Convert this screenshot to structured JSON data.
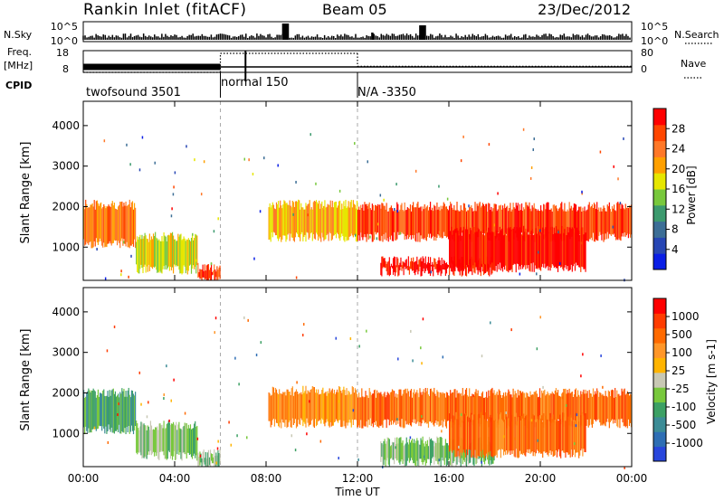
{
  "header": {
    "title": "Rankin Inlet (fitACF)",
    "beam": "Beam 05",
    "date": "23/Dec/2012"
  },
  "colors": {
    "power": [
      "#0a1ee6",
      "#2746b4",
      "#3c6e96",
      "#3c9a6e",
      "#78c83c",
      "#e6e600",
      "#ffa000",
      "#ff7828",
      "#ff4600",
      "#ff0000"
    ],
    "velocity": [
      "#2846dc",
      "#2e6eb4",
      "#3c8c96",
      "#3ca064",
      "#78c83c",
      "#c8c8b4",
      "#ffb400",
      "#ff9628",
      "#ff6a00",
      "#ff3c00",
      "#ff0000"
    ]
  },
  "chart_data": [
    {
      "type": "line",
      "panel": "status",
      "left_labels": {
        "nsky": "N.Sky",
        "freq_line1": "Freq.",
        "freq_line2": "[MHz]",
        "cpid": "CPID"
      },
      "right_labels": {
        "nsearch": "N.Search",
        "nave": "Nave"
      },
      "nsky_ticks": [
        "10^5",
        "10^0"
      ],
      "nsearch_ticks": [
        "10^5",
        "10^0"
      ],
      "freq_ticks": [
        "18",
        "8"
      ],
      "nave_ticks": [
        "80",
        "0"
      ],
      "freq_series": [
        {
          "x_start": 0,
          "x_end": 6,
          "value": 10.5,
          "style": "solid-thick"
        },
        {
          "x_start": 6,
          "x_end": 12,
          "value": 10.5,
          "style": "solid"
        },
        {
          "x_start": 12,
          "x_end": 24,
          "value": 10.5,
          "style": "solid"
        }
      ],
      "nave_series": [
        {
          "x_start": 0,
          "x_end": 6,
          "value": 0,
          "style": "dotted"
        },
        {
          "x_start": 6,
          "x_end": 12,
          "value": 70,
          "style": "dotted"
        },
        {
          "x_start": 12,
          "x_end": 24,
          "value": 22,
          "style": "dotted"
        }
      ],
      "cpid_segments": [
        {
          "start": 0,
          "label": "twofsound 3501"
        },
        {
          "start": 6,
          "label": "normal 150"
        },
        {
          "start": 12,
          "label": "N/A -3350"
        }
      ]
    },
    {
      "type": "heatmap",
      "panel": "power",
      "ylabel": "Slant Range [km]",
      "yticks": [
        1000,
        2000,
        3000,
        4000
      ],
      "ylim": [
        180,
        4600
      ],
      "xlim": [
        0,
        24
      ],
      "colorbar_label": "Power [dB]",
      "colorbar_ticks": [
        "28",
        "24",
        "20",
        "16",
        "12",
        "8",
        "4"
      ],
      "regions": [
        {
          "t0": 0.0,
          "t1": 2.3,
          "r0": 1100,
          "r1": 2050,
          "level": 7
        },
        {
          "t0": 2.3,
          "t1": 5.0,
          "r0": 450,
          "r1": 1250,
          "level": 5
        },
        {
          "t0": 5.0,
          "t1": 6.0,
          "r0": 200,
          "r1": 500,
          "level": 8
        },
        {
          "t0": 8.1,
          "t1": 12.0,
          "r0": 1250,
          "r1": 2050,
          "level": 6
        },
        {
          "t0": 12.0,
          "t1": 24.0,
          "r0": 1250,
          "r1": 2000,
          "level": 8
        },
        {
          "t0": 13.0,
          "t1": 18.0,
          "r0": 400,
          "r1": 650,
          "level": 9
        },
        {
          "t0": 16.0,
          "t1": 22.0,
          "r0": 500,
          "r1": 1400,
          "level": 9
        }
      ]
    },
    {
      "type": "heatmap",
      "panel": "velocity",
      "ylabel": "Slant Range [km]",
      "yticks": [
        1000,
        2000,
        3000,
        4000
      ],
      "ylim": [
        180,
        4600
      ],
      "xlim": [
        0,
        24
      ],
      "xticks": [
        "00:00",
        "04:00",
        "08:00",
        "12:00",
        "16:00",
        "20:00",
        "00:00"
      ],
      "xlabel": "Time UT",
      "colorbar_label": "Velocity [m s-1]",
      "colorbar_ticks": [
        "1000",
        "500",
        "100",
        "25",
        "-25",
        "-100",
        "-500",
        "-1000"
      ],
      "regions": [
        {
          "t0": 0.0,
          "t1": 2.3,
          "r0": 1100,
          "r1": 2000,
          "level": 3
        },
        {
          "t0": 2.3,
          "t1": 5.0,
          "r0": 450,
          "r1": 1200,
          "level": 4
        },
        {
          "t0": 5.0,
          "t1": 6.0,
          "r0": 200,
          "r1": 500,
          "level": 4
        },
        {
          "t0": 8.1,
          "t1": 12.0,
          "r0": 1250,
          "r1": 2050,
          "level": 7
        },
        {
          "t0": 12.0,
          "t1": 24.0,
          "r0": 1250,
          "r1": 2000,
          "level": 8
        },
        {
          "t0": 13.0,
          "t1": 18.0,
          "r0": 300,
          "r1": 800,
          "level": 4
        },
        {
          "t0": 16.0,
          "t1": 22.0,
          "r0": 500,
          "r1": 1400,
          "level": 8
        }
      ]
    }
  ]
}
